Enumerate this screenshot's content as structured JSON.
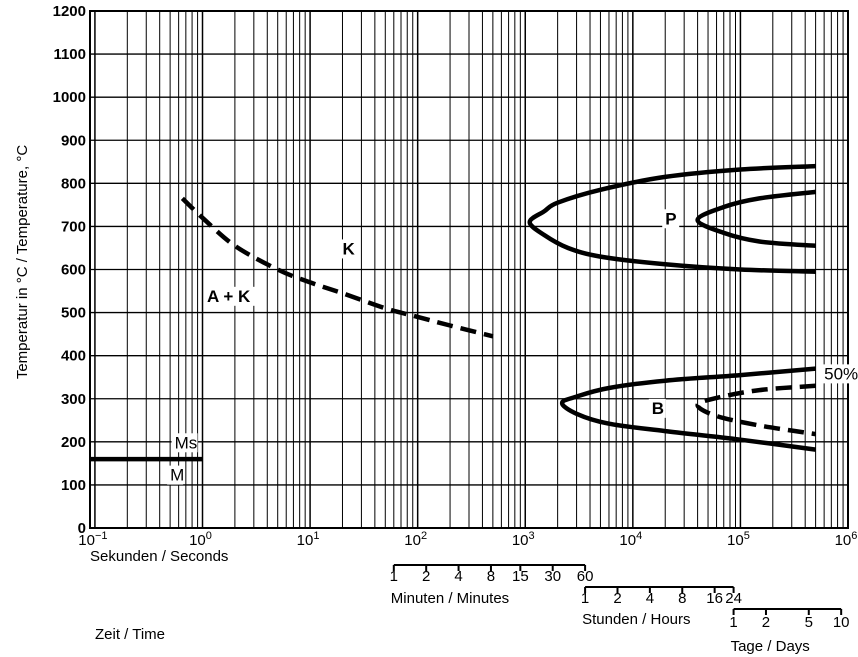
{
  "chart_data": {
    "type": "line",
    "title": "",
    "ylabel": "Temperatur in °C / Temperature, °C",
    "xlabel": "Sekunden / Seconds",
    "time_label": "Zeit / Time",
    "x_scale": "log",
    "x_range": [
      0.1,
      1000000
    ],
    "xlim": [
      0.09,
      1000000
    ],
    "ylim": [
      0,
      1200
    ],
    "yticks": [
      "0",
      "100",
      "200",
      "300",
      "400",
      "500",
      "600",
      "700",
      "800",
      "900",
      "1000",
      "1100",
      "1200"
    ],
    "xticks": [
      {
        "value": 0.1,
        "base": "10",
        "exp": "−1"
      },
      {
        "value": 1,
        "base": "10",
        "exp": "0"
      },
      {
        "value": 10,
        "base": "10",
        "exp": "1"
      },
      {
        "value": 100,
        "base": "10",
        "exp": "2"
      },
      {
        "value": 1000,
        "base": "10",
        "exp": "3"
      },
      {
        "value": 10000,
        "base": "10",
        "exp": "4"
      },
      {
        "value": 100000,
        "base": "10",
        "exp": "5"
      },
      {
        "value": 1000000,
        "base": "10",
        "exp": "6"
      }
    ],
    "grid": true,
    "series": [
      {
        "name": "K",
        "style": "dashed",
        "points": [
          [
            0.65,
            765
          ],
          [
            1,
            720
          ],
          [
            2,
            655
          ],
          [
            5,
            600
          ],
          [
            10,
            570
          ],
          [
            20,
            545
          ],
          [
            50,
            510
          ],
          [
            100,
            490
          ],
          [
            200,
            470
          ],
          [
            500,
            445
          ]
        ]
      },
      {
        "name": "P",
        "style": "solid",
        "points": [
          [
            500000,
            840
          ],
          [
            100000,
            832
          ],
          [
            20000,
            815
          ],
          [
            5000,
            785
          ],
          [
            2000,
            755
          ],
          [
            1500,
            735
          ],
          [
            1100,
            710
          ],
          [
            1500,
            680
          ],
          [
            2500,
            650
          ],
          [
            5000,
            630
          ],
          [
            20000,
            612
          ],
          [
            100000,
            600
          ],
          [
            500000,
            595
          ]
        ]
      },
      {
        "style": "solid",
        "points": [
          [
            500000,
            780
          ],
          [
            150000,
            765
          ],
          [
            70000,
            745
          ],
          [
            40000,
            715
          ],
          [
            70000,
            685
          ],
          [
            150000,
            665
          ],
          [
            500000,
            655
          ]
        ]
      },
      {
        "name": "B",
        "style": "solid",
        "points": [
          [
            500000,
            370
          ],
          [
            100000,
            355
          ],
          [
            20000,
            342
          ],
          [
            6000,
            325
          ],
          [
            3000,
            305
          ],
          [
            2200,
            290
          ],
          [
            3000,
            265
          ],
          [
            6000,
            242
          ],
          [
            20000,
            225
          ],
          [
            100000,
            205
          ],
          [
            500000,
            182
          ]
        ]
      },
      {
        "name": "50%",
        "style": "dashed",
        "points": [
          [
            500000,
            330
          ],
          [
            150000,
            320
          ],
          [
            60000,
            302
          ],
          [
            40000,
            285
          ],
          [
            60000,
            260
          ],
          [
            150000,
            238
          ],
          [
            500000,
            218
          ]
        ]
      },
      {
        "name": "Ms",
        "style": "solid",
        "points": [
          [
            0.09,
            160
          ],
          [
            1,
            160
          ]
        ]
      }
    ],
    "annotations": [
      {
        "text": "A + K",
        "x": 1.1,
        "y": 525
      },
      {
        "text": "K",
        "x": 20,
        "y": 635
      },
      {
        "text": "P",
        "x": 20000,
        "y": 705
      },
      {
        "text": "B",
        "x": 15000,
        "y": 265
      },
      {
        "text": "Ms",
        "x": 0.55,
        "y": 185
      },
      {
        "text": "M",
        "x": 0.5,
        "y": 110
      },
      {
        "text": "50%",
        "x": 600000,
        "y": 345
      }
    ],
    "secondary_scales": [
      {
        "label": "Minuten / Minutes",
        "unit_seconds": 60,
        "ticks": [
          "1",
          "2",
          "4",
          "8",
          "15",
          "30",
          "60"
        ],
        "tick_values": [
          1,
          2,
          4,
          8,
          15,
          30,
          60
        ]
      },
      {
        "label": "Stunden / Hours",
        "unit_seconds": 3600,
        "ticks": [
          "1",
          "2",
          "4",
          "8",
          "16",
          "24"
        ],
        "tick_values": [
          1,
          2,
          4,
          8,
          16,
          24
        ]
      },
      {
        "label": "Tage / Days",
        "unit_seconds": 86400,
        "ticks": [
          "1",
          "2",
          "5",
          "10"
        ],
        "tick_values": [
          1,
          2,
          5,
          10
        ]
      }
    ]
  }
}
